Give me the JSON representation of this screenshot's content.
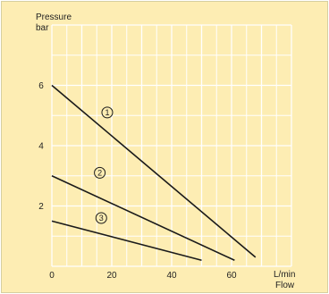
{
  "chart_data": {
    "type": "line",
    "ylabel_line1": "Pressure",
    "ylabel_line2": "bar",
    "xlabel_line1": "L/min",
    "xlabel_line2": "Flow",
    "xlim": [
      0,
      80
    ],
    "ylim": [
      0,
      8
    ],
    "x_ticks": [
      0,
      20,
      40,
      60
    ],
    "y_ticks": [
      2,
      4,
      6
    ],
    "grid": true,
    "colors": {
      "background": "#fdedb3",
      "grid": "#ffffff",
      "line": "#1a1a1a"
    },
    "series": [
      {
        "marker": "1",
        "x": [
          0,
          68
        ],
        "y": [
          6.0,
          0.3
        ],
        "marker_at": [
          18.5,
          5.1
        ]
      },
      {
        "marker": "2",
        "x": [
          0,
          61
        ],
        "y": [
          3.0,
          0.2
        ],
        "marker_at": [
          16.0,
          3.1
        ]
      },
      {
        "marker": "3",
        "x": [
          0,
          50
        ],
        "y": [
          1.5,
          0.2
        ],
        "marker_at": [
          16.5,
          1.6
        ]
      }
    ]
  }
}
